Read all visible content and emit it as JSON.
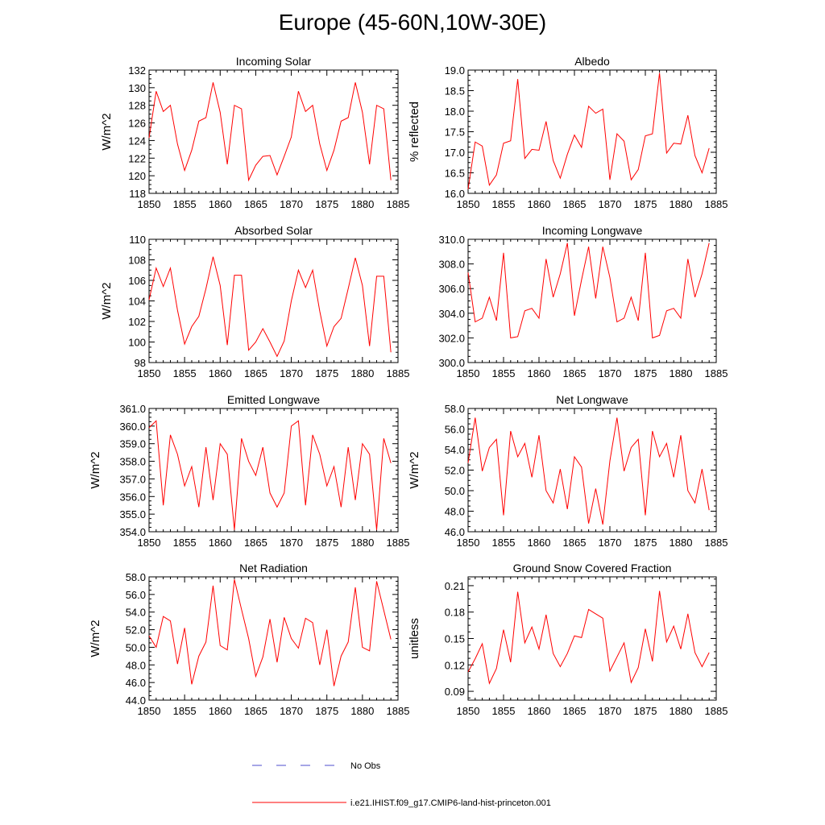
{
  "page_title": "Europe (45-60N,10W-30E)",
  "colors": {
    "model": "#ff0000",
    "obs": "#4d4dcc",
    "axis": "#000000"
  },
  "legend": {
    "obs_label": "No Obs",
    "model_label": "i.e21.IHIST.f09_g17.CMIP6-land-hist-princeton.001"
  },
  "chart_data": [
    {
      "type": "line",
      "title": "Incoming Solar",
      "xlabel": "",
      "ylabel": "W/m^2",
      "xlim": [
        1850,
        1885
      ],
      "ylim": [
        118,
        132
      ],
      "xticks": [
        1850,
        1855,
        1860,
        1865,
        1870,
        1875,
        1880,
        1885
      ],
      "yticks": [
        "118",
        "120",
        "122",
        "124",
        "126",
        "128",
        "130",
        "132"
      ],
      "x": [
        1850,
        1851,
        1852,
        1853,
        1854,
        1855,
        1856,
        1857,
        1858,
        1859,
        1860,
        1861,
        1862,
        1863,
        1864,
        1865,
        1866,
        1867,
        1868,
        1869,
        1870,
        1871,
        1872,
        1873,
        1874,
        1875,
        1876,
        1877,
        1878,
        1879,
        1880,
        1881,
        1882,
        1883,
        1884
      ],
      "series": [
        {
          "values": [
            124.3,
            129.6,
            127.3,
            128.0,
            123.6,
            120.6,
            122.9,
            126.2,
            126.6,
            130.6,
            127.2,
            121.3,
            128.0,
            127.6,
            119.5,
            121.2,
            122.2,
            122.3,
            120.1,
            122.2,
            124.4,
            129.6,
            127.3,
            128.0,
            123.6,
            120.6,
            122.9,
            126.2,
            126.6,
            130.6,
            127.2,
            121.3,
            128.0,
            127.6,
            119.5
          ]
        }
      ]
    },
    {
      "type": "line",
      "title": "Albedo",
      "xlabel": "",
      "ylabel": "% reflected",
      "xlim": [
        1850,
        1885
      ],
      "ylim": [
        16.0,
        19.0
      ],
      "xticks": [
        1850,
        1855,
        1860,
        1865,
        1870,
        1875,
        1880,
        1885
      ],
      "yticks": [
        "16.0",
        "16.5",
        "17.0",
        "17.5",
        "18.0",
        "18.5",
        "19.0"
      ],
      "x": [
        1850,
        1851,
        1852,
        1853,
        1854,
        1855,
        1856,
        1857,
        1858,
        1859,
        1860,
        1861,
        1862,
        1863,
        1864,
        1865,
        1866,
        1867,
        1868,
        1869,
        1870,
        1871,
        1872,
        1873,
        1874,
        1875,
        1876,
        1877,
        1878,
        1879,
        1880,
        1881,
        1882,
        1883,
        1884
      ],
      "series": [
        {
          "values": [
            16.1,
            17.25,
            17.15,
            16.2,
            16.45,
            17.22,
            17.28,
            18.78,
            16.85,
            17.07,
            17.05,
            17.75,
            16.8,
            16.37,
            16.95,
            17.42,
            17.12,
            18.12,
            17.95,
            18.05,
            16.33,
            17.45,
            17.27,
            16.33,
            16.58,
            17.4,
            17.45,
            18.93,
            16.98,
            17.22,
            17.2,
            17.9,
            16.92,
            16.5,
            17.1
          ]
        }
      ]
    },
    {
      "type": "line",
      "title": "Absorbed Solar",
      "xlabel": "",
      "ylabel": "W/m^2",
      "xlim": [
        1850,
        1885
      ],
      "ylim": [
        98,
        110
      ],
      "xticks": [
        1850,
        1855,
        1860,
        1865,
        1870,
        1875,
        1880,
        1885
      ],
      "yticks": [
        "98",
        "100",
        "102",
        "104",
        "106",
        "108",
        "110"
      ],
      "x": [
        1850,
        1851,
        1852,
        1853,
        1854,
        1855,
        1856,
        1857,
        1858,
        1859,
        1860,
        1861,
        1862,
        1863,
        1864,
        1865,
        1866,
        1867,
        1868,
        1869,
        1870,
        1871,
        1872,
        1873,
        1874,
        1875,
        1876,
        1877,
        1878,
        1879,
        1880,
        1881,
        1882,
        1883,
        1884
      ],
      "series": [
        {
          "values": [
            104.1,
            107.2,
            105.4,
            107.2,
            103.1,
            99.8,
            101.5,
            102.5,
            105.2,
            108.3,
            105.5,
            99.7,
            106.5,
            106.5,
            99.2,
            100.0,
            101.3,
            100.0,
            98.6,
            100.1,
            104.0,
            107.0,
            105.3,
            107.0,
            103.0,
            99.6,
            101.5,
            102.3,
            105.2,
            108.2,
            105.5,
            99.6,
            106.4,
            106.4,
            99.0
          ]
        }
      ]
    },
    {
      "type": "line",
      "title": "Incoming Longwave",
      "xlabel": "",
      "ylabel": "",
      "xlim": [
        1850,
        1885
      ],
      "ylim": [
        300.0,
        310.0
      ],
      "xticks": [
        1850,
        1855,
        1860,
        1865,
        1870,
        1875,
        1880,
        1885
      ],
      "yticks": [
        "300.0",
        "302.0",
        "304.0",
        "306.0",
        "308.0",
        "310.0"
      ],
      "x": [
        1850,
        1851,
        1852,
        1853,
        1854,
        1855,
        1856,
        1857,
        1858,
        1859,
        1860,
        1861,
        1862,
        1863,
        1864,
        1865,
        1866,
        1867,
        1868,
        1869,
        1870,
        1871,
        1872,
        1873,
        1874,
        1875,
        1876,
        1877,
        1878,
        1879,
        1880,
        1881,
        1882,
        1883,
        1884
      ],
      "series": [
        {
          "values": [
            307.3,
            303.3,
            303.6,
            305.3,
            303.4,
            308.9,
            302.0,
            302.1,
            304.2,
            304.4,
            303.6,
            308.4,
            305.3,
            307.2,
            309.7,
            303.8,
            306.7,
            309.4,
            305.2,
            309.4,
            306.9,
            303.3,
            303.6,
            305.3,
            303.4,
            308.9,
            302.0,
            302.2,
            304.2,
            304.4,
            303.6,
            308.4,
            305.3,
            307.2,
            309.7
          ]
        }
      ]
    },
    {
      "type": "line",
      "title": "Emitted Longwave",
      "xlabel": "",
      "ylabel": "W/m^2",
      "xlim": [
        1850,
        1885
      ],
      "ylim": [
        354.0,
        361.0
      ],
      "xticks": [
        1850,
        1855,
        1860,
        1865,
        1870,
        1875,
        1880,
        1885
      ],
      "yticks": [
        "354.0",
        "355.0",
        "356.0",
        "357.0",
        "358.0",
        "359.0",
        "360.0",
        "361.0"
      ],
      "x": [
        1850,
        1851,
        1852,
        1853,
        1854,
        1855,
        1856,
        1857,
        1858,
        1859,
        1860,
        1861,
        1862,
        1863,
        1864,
        1865,
        1866,
        1867,
        1868,
        1869,
        1870,
        1871,
        1872,
        1873,
        1874,
        1875,
        1876,
        1877,
        1878,
        1879,
        1880,
        1881,
        1882,
        1883,
        1884
      ],
      "series": [
        {
          "values": [
            359.9,
            360.3,
            355.5,
            359.5,
            358.4,
            356.6,
            357.7,
            355.4,
            358.8,
            355.8,
            359.0,
            358.4,
            354.1,
            359.3,
            358.0,
            357.2,
            358.8,
            356.2,
            355.4,
            356.2,
            360.0,
            360.3,
            355.5,
            359.5,
            358.4,
            356.6,
            357.7,
            355.4,
            358.8,
            355.8,
            359.0,
            358.4,
            354.1,
            359.3,
            357.9
          ]
        }
      ]
    },
    {
      "type": "line",
      "title": "Net Longwave",
      "xlabel": "",
      "ylabel": "W/m^2",
      "xlim": [
        1850,
        1885
      ],
      "ylim": [
        46.0,
        58.0
      ],
      "xticks": [
        1850,
        1855,
        1860,
        1865,
        1870,
        1875,
        1880,
        1885
      ],
      "yticks": [
        "46.0",
        "48.0",
        "50.0",
        "52.0",
        "54.0",
        "56.0",
        "58.0"
      ],
      "x": [
        1850,
        1851,
        1852,
        1853,
        1854,
        1855,
        1856,
        1857,
        1858,
        1859,
        1860,
        1861,
        1862,
        1863,
        1864,
        1865,
        1866,
        1867,
        1868,
        1869,
        1870,
        1871,
        1872,
        1873,
        1874,
        1875,
        1876,
        1877,
        1878,
        1879,
        1880,
        1881,
        1882,
        1883,
        1884
      ],
      "series": [
        {
          "values": [
            52.7,
            57.1,
            51.9,
            54.2,
            55.0,
            47.6,
            55.8,
            53.3,
            54.6,
            51.3,
            55.4,
            50.0,
            48.8,
            52.1,
            48.2,
            53.3,
            52.3,
            46.8,
            50.2,
            46.7,
            52.9,
            57.1,
            51.9,
            54.2,
            55.0,
            47.6,
            55.8,
            53.3,
            54.6,
            51.3,
            55.4,
            50.0,
            48.8,
            52.1,
            48.1
          ]
        }
      ]
    },
    {
      "type": "line",
      "title": "Net Radiation",
      "xlabel": "",
      "ylabel": "W/m^2",
      "xlim": [
        1850,
        1885
      ],
      "ylim": [
        44.0,
        58.0
      ],
      "xticks": [
        1850,
        1855,
        1860,
        1865,
        1870,
        1875,
        1880,
        1885
      ],
      "yticks": [
        "44.0",
        "46.0",
        "48.0",
        "50.0",
        "52.0",
        "54.0",
        "56.0",
        "58.0"
      ],
      "x": [
        1850,
        1851,
        1852,
        1853,
        1854,
        1855,
        1856,
        1857,
        1858,
        1859,
        1860,
        1861,
        1862,
        1863,
        1864,
        1865,
        1866,
        1867,
        1868,
        1869,
        1870,
        1871,
        1872,
        1873,
        1874,
        1875,
        1876,
        1877,
        1878,
        1879,
        1880,
        1881,
        1882,
        1883,
        1884
      ],
      "series": [
        {
          "values": [
            51.3,
            50.0,
            53.5,
            53.0,
            48.1,
            52.2,
            45.8,
            49.0,
            50.6,
            57.0,
            50.2,
            49.7,
            57.7,
            54.3,
            51.0,
            46.7,
            48.9,
            53.2,
            48.3,
            53.4,
            51.0,
            49.9,
            53.3,
            52.8,
            48.0,
            52.0,
            45.6,
            49.0,
            50.6,
            56.8,
            50.0,
            49.6,
            57.5,
            54.2,
            50.9
          ]
        }
      ]
    },
    {
      "type": "line",
      "title": "Ground Snow Covered Fraction",
      "xlabel": "",
      "ylabel": "unitless",
      "xlim": [
        1850,
        1885
      ],
      "ylim": [
        0.08,
        0.22
      ],
      "xticks": [
        1850,
        1855,
        1860,
        1865,
        1870,
        1875,
        1880,
        1885
      ],
      "yticks": [
        "0.09",
        "0.12",
        "0.15",
        "0.18",
        "0.21"
      ],
      "ytick_values": [
        0.09,
        0.12,
        0.15,
        0.18,
        0.21
      ],
      "x": [
        1850,
        1851,
        1852,
        1853,
        1854,
        1855,
        1856,
        1857,
        1858,
        1859,
        1860,
        1861,
        1862,
        1863,
        1864,
        1865,
        1866,
        1867,
        1868,
        1869,
        1870,
        1871,
        1872,
        1873,
        1874,
        1875,
        1876,
        1877,
        1878,
        1879,
        1880,
        1881,
        1882,
        1883,
        1884
      ],
      "series": [
        {
          "values": [
            0.112,
            0.127,
            0.144,
            0.099,
            0.116,
            0.16,
            0.123,
            0.203,
            0.145,
            0.163,
            0.138,
            0.177,
            0.133,
            0.118,
            0.133,
            0.153,
            0.151,
            0.183,
            0.178,
            0.173,
            0.113,
            0.129,
            0.145,
            0.1,
            0.117,
            0.161,
            0.124,
            0.204,
            0.146,
            0.164,
            0.138,
            0.178,
            0.134,
            0.118,
            0.134
          ]
        }
      ]
    }
  ]
}
